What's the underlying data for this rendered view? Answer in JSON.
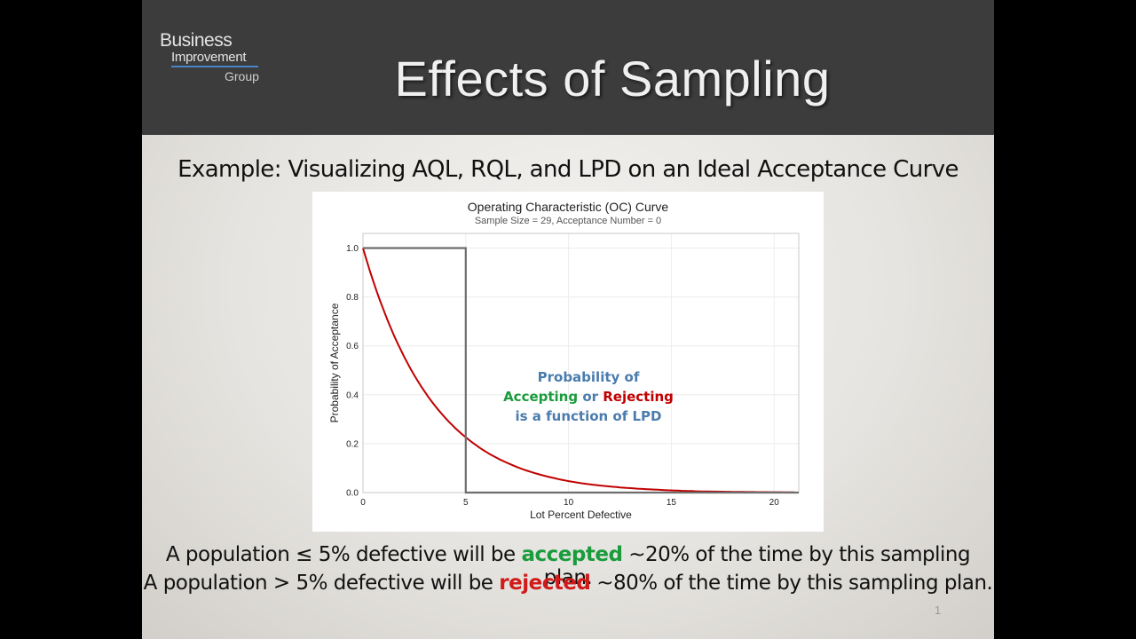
{
  "logo": {
    "line1": "Business",
    "line2": "Improvement",
    "line3": "Group"
  },
  "title": "Effects of Sampling",
  "subtitle": "Example: Visualizing AQL, RQL, and LPD on an Ideal Acceptance Curve",
  "chart_data": {
    "type": "line",
    "title": "Operating Characteristic (OC) Curve",
    "subtitle": "Sample Size = 29, Acceptance Number = 0",
    "xlabel": "Lot Percent Defective",
    "ylabel": "Probability of Acceptance",
    "xlim": [
      0,
      21.2
    ],
    "ylim": [
      0,
      1.06
    ],
    "x_ticks": [
      "0",
      "5",
      "10",
      "15",
      "20"
    ],
    "y_ticks": [
      "0.0",
      "0.2",
      "0.4",
      "0.6",
      "0.8",
      "1.0"
    ],
    "grid": true,
    "series": [
      {
        "color": "#c00000",
        "x": [
          0,
          1,
          2,
          3,
          4,
          5,
          6,
          7,
          8,
          9,
          10,
          11,
          12,
          13,
          14,
          15,
          16,
          17,
          18,
          19,
          20,
          21
        ],
        "y": [
          1.0,
          0.747,
          0.556,
          0.413,
          0.306,
          0.226,
          0.166,
          0.122,
          0.089,
          0.065,
          0.047,
          0.034,
          0.025,
          0.018,
          0.013,
          0.009,
          0.006,
          0.004,
          0.003,
          0.002,
          0.0015,
          0.001
        ]
      },
      {
        "color": "#6e6e6e",
        "x": [
          0,
          5,
          5,
          21.2
        ],
        "y": [
          1.0,
          1.0,
          0.0,
          0.0
        ]
      }
    ],
    "annotation": {
      "line1": "Probability of",
      "line2_a": "Accepting",
      "line2_b": " or ",
      "line2_c": "Rejecting",
      "line3": "is a function of LPD",
      "color_main": "#4a7cad",
      "color_accept": "#1a9b3c",
      "color_reject": "#c00000"
    }
  },
  "statements": {
    "line1_a": "A population ≤ 5% defective will be ",
    "line1_b": "accepted",
    "line1_c": " ~20% of the time by this sampling plan.",
    "line2_a": "A population > 5% defective will be ",
    "line2_b": "rejected",
    "line2_c": " ~80% of the time by this sampling plan."
  },
  "page_number": "1"
}
